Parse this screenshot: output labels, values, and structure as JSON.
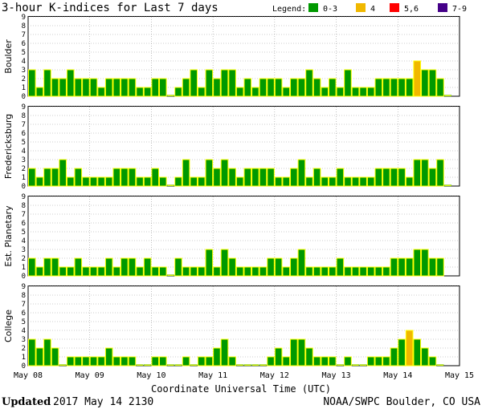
{
  "header": {
    "title": "3-hour K-indices for Last 7 days",
    "legend_label": "Legend:",
    "legend": [
      {
        "label": "0-3",
        "color": "#009900"
      },
      {
        "label": "4",
        "color": "#f0b800"
      },
      {
        "label": "5,6",
        "color": "#ff0000"
      },
      {
        "label": "7-9",
        "color": "#440088"
      }
    ]
  },
  "colors": {
    "quiet": "#009900",
    "edge": "#ffff00",
    "active": "#f0b800",
    "storm": "#ff0000",
    "severe": "#440088"
  },
  "footer": {
    "updated_label": "Updated",
    "updated_value": "2017 May 14 2130",
    "source": "NOAA/SWPC Boulder, CO USA"
  },
  "chart_data": {
    "type": "bar",
    "xlabel": "Coordinate Universal Time (UTC)",
    "x_tick_labels": [
      "May 08",
      "May 09",
      "May 10",
      "May 11",
      "May 12",
      "May 13",
      "May 14",
      "May 15"
    ],
    "ylim": [
      0,
      9
    ],
    "y_ticks": [
      0,
      1,
      2,
      3,
      4,
      5,
      6,
      7,
      8,
      9
    ],
    "grid": true,
    "series": [
      {
        "name": "Boulder",
        "values": [
          3,
          1,
          3,
          2,
          2,
          3,
          2,
          2,
          2,
          1,
          2,
          2,
          2,
          2,
          1,
          1,
          2,
          2,
          0,
          1,
          2,
          3,
          1,
          3,
          2,
          3,
          3,
          1,
          2,
          1,
          2,
          2,
          2,
          1,
          2,
          2,
          3,
          2,
          1,
          2,
          1,
          3,
          1,
          1,
          1,
          2,
          2,
          2,
          2,
          2,
          4,
          3,
          3,
          2,
          0
        ]
      },
      {
        "name": "Fredericksburg",
        "values": [
          2,
          1,
          2,
          2,
          3,
          1,
          2,
          1,
          1,
          1,
          1,
          2,
          2,
          2,
          1,
          1,
          2,
          1,
          0,
          1,
          3,
          1,
          1,
          3,
          2,
          3,
          2,
          1,
          2,
          2,
          2,
          2,
          1,
          1,
          2,
          3,
          1,
          2,
          1,
          1,
          2,
          1,
          1,
          1,
          1,
          2,
          2,
          2,
          2,
          1,
          3,
          3,
          2,
          3,
          0
        ]
      },
      {
        "name": "Est. Planetary",
        "values": [
          2,
          1,
          2,
          2,
          1,
          1,
          2,
          1,
          1,
          1,
          2,
          1,
          2,
          2,
          1,
          2,
          1,
          1,
          0,
          2,
          1,
          1,
          1,
          3,
          1,
          3,
          2,
          1,
          1,
          1,
          1,
          2,
          2,
          1,
          2,
          3,
          1,
          1,
          1,
          1,
          2,
          1,
          1,
          1,
          1,
          1,
          1,
          2,
          2,
          2,
          3,
          3,
          2,
          2
        ]
      },
      {
        "name": "College",
        "values": [
          3,
          2,
          3,
          2,
          0,
          1,
          1,
          1,
          1,
          1,
          2,
          1,
          1,
          1,
          0,
          0,
          1,
          1,
          0,
          0,
          1,
          0,
          1,
          1,
          2,
          3,
          1,
          0,
          0,
          0,
          0,
          1,
          2,
          1,
          3,
          3,
          2,
          1,
          1,
          1,
          0,
          1,
          0,
          0,
          1,
          1,
          1,
          2,
          3,
          4,
          3,
          2,
          1,
          0
        ]
      }
    ]
  }
}
